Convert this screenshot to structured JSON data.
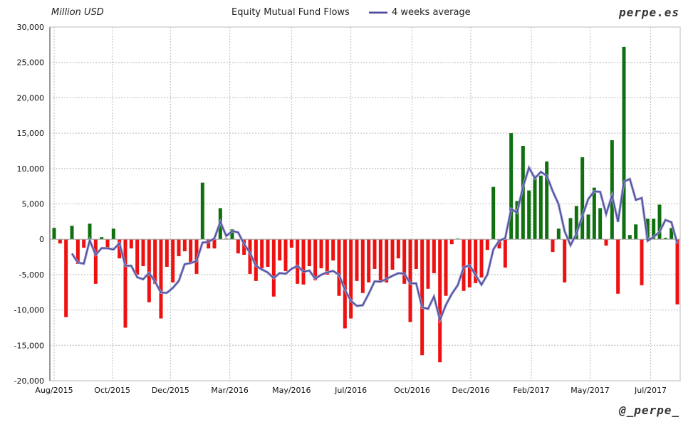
{
  "chart_data": {
    "type": "bar",
    "title": "Equity Mutual Fund Flows",
    "ylabel": "Million USD",
    "xlabel": "",
    "ylim": [
      -20000,
      30000
    ],
    "y_ticks": [
      "30,000",
      "25,000",
      "20,000",
      "15,000",
      "10,000",
      "5,000",
      "0",
      "-5,000",
      "-10,000",
      "-15,000",
      "-20,000"
    ],
    "y_tick_values": [
      30000,
      25000,
      20000,
      15000,
      10000,
      5000,
      0,
      -5000,
      -10000,
      -15000,
      -20000
    ],
    "x_ticks": [
      {
        "label": "Aug/2015",
        "week": 0
      },
      {
        "label": "Oct/2015",
        "week": 9.8
      },
      {
        "label": "Dec/2015",
        "week": 19.6
      },
      {
        "label": "Mar/2016",
        "week": 29.6
      },
      {
        "label": "May/2016",
        "week": 40
      },
      {
        "label": "Jul/2016",
        "week": 50
      },
      {
        "label": "Oct/2016",
        "week": 60.3
      },
      {
        "label": "Dec/2016",
        "week": 70.2
      },
      {
        "label": "Feb/2017",
        "week": 80.4
      },
      {
        "label": "May/2017",
        "week": 90.3
      },
      {
        "label": "Jul/2017",
        "week": 100.5
      }
    ],
    "grid": true,
    "legend": [
      {
        "name": "4 weeks average",
        "color": "#4a4a9a",
        "type": "line",
        "window": 4
      }
    ],
    "legend_position": "top-center",
    "colors": {
      "positive": "#107010",
      "negative": "#ee1111",
      "line": "#4a4a9a"
    },
    "values": [
      1600,
      -600,
      -11000,
      1900,
      -3500,
      -1200,
      2200,
      -6300,
      300,
      -1300,
      1500,
      -2700,
      -12500,
      -1300,
      -5000,
      -3800,
      -8900,
      -6300,
      -11200,
      -3900,
      -6100,
      -2400,
      -1700,
      -3300,
      -4900,
      8000,
      -1300,
      -1300,
      4400,
      100,
      1400,
      -2000,
      -2200,
      -4900,
      -5900,
      -4100,
      -3900,
      -8100,
      -3000,
      -4500,
      -1200,
      -6300,
      -6400,
      -3800,
      -5800,
      -4100,
      -5000,
      -3000,
      -8000,
      -12600,
      -11200,
      -5900,
      -7600,
      -6100,
      -4200,
      -6100,
      -6100,
      -4300,
      -2700,
      -6300,
      -11700,
      -4200,
      -16400,
      -7000,
      -4800,
      -17400,
      -8000,
      -700,
      100,
      -7300,
      -6800,
      -6200,
      -5400,
      -1500,
      7400,
      -1300,
      -4000,
      15000,
      5400,
      13200,
      6900,
      9000,
      9000,
      11000,
      -1800,
      1500,
      -6100,
      3000,
      4700,
      11600,
      3500,
      7300,
      4400,
      -900,
      14000,
      -7700,
      27200,
      600,
      2100,
      -6500,
      2900,
      2900,
      4900,
      200,
      1600,
      -9200
    ]
  },
  "brand": "perpe.es",
  "handle": "@_perpe_"
}
